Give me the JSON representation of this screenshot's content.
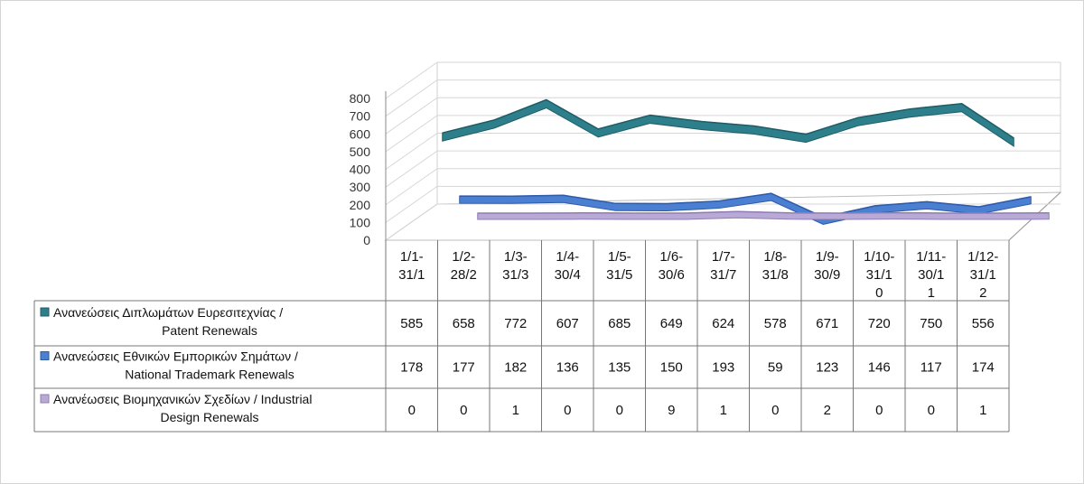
{
  "chart_data": {
    "type": "line",
    "categories": [
      "1/1-31/1",
      "1/2-28/2",
      "1/3-31/3",
      "1/4-30/4",
      "1/5-31/5",
      "1/6-30/6",
      "1/7-31/7",
      "1/8-31/8",
      "1/9-30/9",
      "1/10-31/10",
      "1/11-30/11",
      "1/12-31/12"
    ],
    "category_lines": [
      [
        "1/1-",
        "31/1"
      ],
      [
        "1/2-",
        "28/2"
      ],
      [
        "1/3-",
        "31/3"
      ],
      [
        "1/4-",
        "30/4"
      ],
      [
        "1/5-",
        "31/5"
      ],
      [
        "1/6-",
        "30/6"
      ],
      [
        "1/7-",
        "31/7"
      ],
      [
        "1/8-",
        "31/8"
      ],
      [
        "1/9-",
        "30/9"
      ],
      [
        "1/10-",
        "31/1",
        "0"
      ],
      [
        "1/11-",
        "30/1",
        "1"
      ],
      [
        "1/12-",
        "31/1",
        "2"
      ]
    ],
    "yticks": [
      0,
      100,
      200,
      300,
      400,
      500,
      600,
      700,
      800
    ],
    "ylim": [
      0,
      800
    ],
    "grid": true,
    "data_table": true,
    "series": [
      {
        "name_lines": [
          "Ανανεώσεις Διπλωμάτων Ευρεσιτεχνίας  /",
          "Patent Renewals"
        ],
        "name": "Ανανεώσεις Διπλωμάτων Ευρεσιτεχνίας  / Patent Renewals",
        "color": "#2e7f8c",
        "edge": "#1f5c66",
        "values": [
          585,
          658,
          772,
          607,
          685,
          649,
          624,
          578,
          671,
          720,
          750,
          556
        ]
      },
      {
        "name_lines": [
          "Ανανεώσεις Εθνικών Εμπορικών Σημάτων /",
          "National Trademark Renewals"
        ],
        "name": "Ανανεώσεις Εθνικών Εμπορικών Σημάτων / National Trademark Renewals",
        "color": "#4a7fd1",
        "edge": "#2e5aa8",
        "values": [
          178,
          177,
          182,
          136,
          135,
          150,
          193,
          59,
          123,
          146,
          117,
          174
        ]
      },
      {
        "name_lines": [
          "Ανανέωσεις Βιομηχανικών Σχεδίων / Industrial",
          "Design Renewals"
        ],
        "name": "Ανανέωσεις Βιομηχανικών Σχεδίων / Industrial Design Renewals",
        "color": "#b9a9d6",
        "edge": "#8f7db3",
        "values": [
          0,
          0,
          1,
          0,
          0,
          9,
          1,
          0,
          2,
          0,
          0,
          1
        ]
      }
    ]
  }
}
